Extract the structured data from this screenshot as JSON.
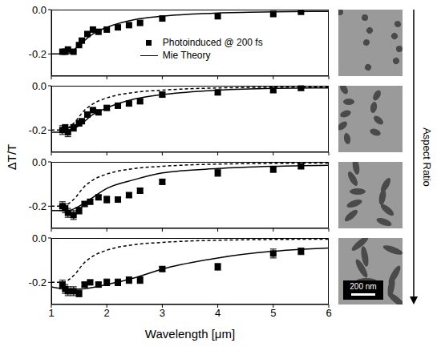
{
  "xlabel": "Wavelength [μm]",
  "ylabel": "ΔT/T",
  "side_label": "Aspect Ratio",
  "scale_bar": "200 nm",
  "chart_data": [
    {
      "type": "scatter",
      "xlim": [
        1,
        6
      ],
      "xticks": [
        1,
        2,
        3,
        4,
        5,
        6
      ],
      "ylim": [
        -0.3,
        0
      ],
      "yticks": [
        {
          "value": 0,
          "label": "0.0"
        },
        -0.2
      ],
      "tick_labels": "y",
      "legend": "right",
      "series": [
        {
          "name": "Photoinduced @ 200 fs",
          "type": "scatter",
          "marker": "square",
          "color": "#000000",
          "x": [
            1.2,
            1.25,
            1.3,
            1.4,
            1.5,
            1.55,
            1.65,
            1.75,
            1.85,
            2.0,
            2.2,
            2.4,
            2.6,
            3.0,
            4.0,
            5.0,
            5.5
          ],
          "values": [
            -0.19,
            -0.19,
            -0.18,
            -0.19,
            -0.16,
            -0.14,
            -0.11,
            -0.09,
            -0.1,
            -0.09,
            -0.08,
            -0.07,
            -0.06,
            -0.04,
            -0.03,
            -0.02,
            -0.01
          ]
        },
        {
          "name": "Mie Theory",
          "type": "line",
          "line_style": "solid",
          "color": "#000000",
          "x": [
            1.0,
            1.2,
            1.3,
            1.5,
            1.75,
            2.0,
            2.5,
            3.0,
            4.0,
            5.0,
            6.0
          ],
          "values": [
            -0.2,
            -0.2,
            -0.2,
            -0.16,
            -0.11,
            -0.08,
            -0.045,
            -0.03,
            -0.015,
            -0.01,
            -0.008
          ]
        }
      ]
    },
    {
      "type": "scatter",
      "xlim": [
        1,
        6
      ],
      "xticks": [
        1,
        2,
        3,
        4,
        5,
        6
      ],
      "ylim": [
        -0.3,
        0
      ],
      "yticks": [
        {
          "value": 0,
          "label": "0.0"
        },
        -0.2
      ],
      "tick_labels": "y",
      "series": [
        {
          "name": "Photoinduced @ 200 fs",
          "type": "scatter",
          "marker": "square",
          "color": "#000000",
          "x": [
            1.2,
            1.25,
            1.3,
            1.4,
            1.5,
            1.55,
            1.65,
            1.75,
            1.85,
            2.0,
            2.2,
            2.4,
            2.6,
            3.0,
            4.0,
            5.0,
            5.5
          ],
          "values": [
            -0.2,
            -0.19,
            -0.21,
            -0.19,
            -0.17,
            -0.16,
            -0.13,
            -0.11,
            -0.12,
            -0.1,
            -0.09,
            -0.08,
            -0.07,
            -0.04,
            -0.03,
            -0.02,
            -0.01
          ],
          "errors": [
            0.02,
            0.015,
            0.02,
            0.015,
            0.01,
            0.01,
            0.01,
            0.01,
            0.01,
            0.01,
            0.01,
            0.01,
            0.01,
            0.01,
            0.01,
            0.01,
            0.01
          ]
        },
        {
          "name": "Mie Theory",
          "type": "line",
          "line_style": "solid",
          "color": "#000000",
          "x": [
            1.0,
            1.2,
            1.5,
            1.75,
            2.0,
            2.5,
            3.0,
            4.0,
            5.0,
            6.0
          ],
          "values": [
            -0.21,
            -0.21,
            -0.18,
            -0.13,
            -0.1,
            -0.06,
            -0.04,
            -0.02,
            -0.012,
            -0.01
          ]
        },
        {
          "type": "line",
          "line_style": "dashed",
          "color": "#000000",
          "x": [
            1.0,
            1.2,
            1.4,
            1.6,
            1.8,
            2.0,
            2.5,
            3.0,
            4.0,
            6.0
          ],
          "values": [
            -0.2,
            -0.2,
            -0.17,
            -0.11,
            -0.075,
            -0.055,
            -0.03,
            -0.02,
            -0.01,
            -0.005
          ]
        }
      ]
    },
    {
      "type": "scatter",
      "xlim": [
        1,
        6
      ],
      "xticks": [
        1,
        2,
        3,
        4,
        5,
        6
      ],
      "ylim": [
        -0.3,
        0
      ],
      "yticks": [
        {
          "value": 0,
          "label": "0.0"
        },
        -0.2
      ],
      "tick_labels": "y",
      "series": [
        {
          "name": "Photoinduced @ 200 fs",
          "type": "scatter",
          "marker": "square",
          "color": "#000000",
          "x": [
            1.2,
            1.25,
            1.3,
            1.4,
            1.5,
            1.6,
            1.7,
            1.85,
            2.0,
            2.2,
            2.4,
            2.6,
            3.0,
            4.0,
            5.0,
            5.5
          ],
          "values": [
            -0.2,
            -0.21,
            -0.23,
            -0.24,
            -0.22,
            -0.19,
            -0.18,
            -0.16,
            -0.17,
            -0.17,
            -0.15,
            -0.13,
            -0.09,
            -0.05,
            -0.035,
            -0.02
          ],
          "errors": [
            0.02,
            0.02,
            0.02,
            0.02,
            0.015,
            0.01,
            0.01,
            0.01,
            0.015,
            0.01,
            0.01,
            0.01,
            0.01,
            0.015,
            0.01,
            0.01
          ]
        },
        {
          "name": "Mie Theory",
          "type": "line",
          "line_style": "solid",
          "color": "#000000",
          "x": [
            1.0,
            1.3,
            1.5,
            1.75,
            2.0,
            2.5,
            3.0,
            4.0,
            5.0,
            6.0
          ],
          "values": [
            -0.22,
            -0.22,
            -0.2,
            -0.16,
            -0.12,
            -0.08,
            -0.05,
            -0.03,
            -0.02,
            -0.015
          ]
        },
        {
          "type": "line",
          "line_style": "dashed",
          "color": "#000000",
          "x": [
            1.0,
            1.2,
            1.4,
            1.6,
            1.8,
            2.0,
            2.5,
            3.0,
            4.0,
            6.0
          ],
          "values": [
            -0.2,
            -0.2,
            -0.17,
            -0.11,
            -0.075,
            -0.055,
            -0.03,
            -0.02,
            -0.01,
            -0.005
          ]
        }
      ]
    },
    {
      "type": "scatter",
      "xlim": [
        1,
        6
      ],
      "xticks": [
        1,
        2,
        3,
        4,
        5,
        6
      ],
      "ylim": [
        -0.3,
        0
      ],
      "yticks": [
        {
          "value": 0,
          "label": "0.0"
        },
        -0.2
      ],
      "series": [
        {
          "name": "Photoinduced @ 200 fs",
          "type": "scatter",
          "marker": "square",
          "color": "#000000",
          "x": [
            1.2,
            1.25,
            1.3,
            1.4,
            1.5,
            1.6,
            1.7,
            1.85,
            2.0,
            2.2,
            2.4,
            2.6,
            3.0,
            4.0,
            5.0,
            5.5
          ],
          "values": [
            -0.21,
            -0.23,
            -0.24,
            -0.24,
            -0.25,
            -0.21,
            -0.2,
            -0.21,
            -0.2,
            -0.2,
            -0.19,
            -0.19,
            -0.14,
            -0.13,
            -0.07,
            -0.06
          ],
          "errors": [
            0.02,
            0.02,
            0.02,
            0.02,
            0.015,
            0.01,
            0.01,
            0.01,
            0.015,
            0.015,
            0.015,
            0.015,
            0.01,
            0.015,
            0.02,
            0.015
          ]
        },
        {
          "name": "Mie Theory",
          "type": "line",
          "line_style": "solid",
          "color": "#000000",
          "x": [
            1.0,
            1.3,
            1.5,
            2.0,
            2.5,
            3.0,
            4.0,
            5.0,
            6.0
          ],
          "values": [
            -0.22,
            -0.23,
            -0.23,
            -0.21,
            -0.18,
            -0.14,
            -0.09,
            -0.06,
            -0.045
          ]
        },
        {
          "type": "line",
          "line_style": "dashed",
          "color": "#000000",
          "x": [
            1.0,
            1.2,
            1.4,
            1.6,
            1.8,
            2.0,
            2.5,
            3.0,
            4.0,
            6.0
          ],
          "values": [
            -0.2,
            -0.2,
            -0.17,
            -0.11,
            -0.075,
            -0.055,
            -0.03,
            -0.02,
            -0.01,
            -0.005
          ]
        }
      ]
    }
  ]
}
